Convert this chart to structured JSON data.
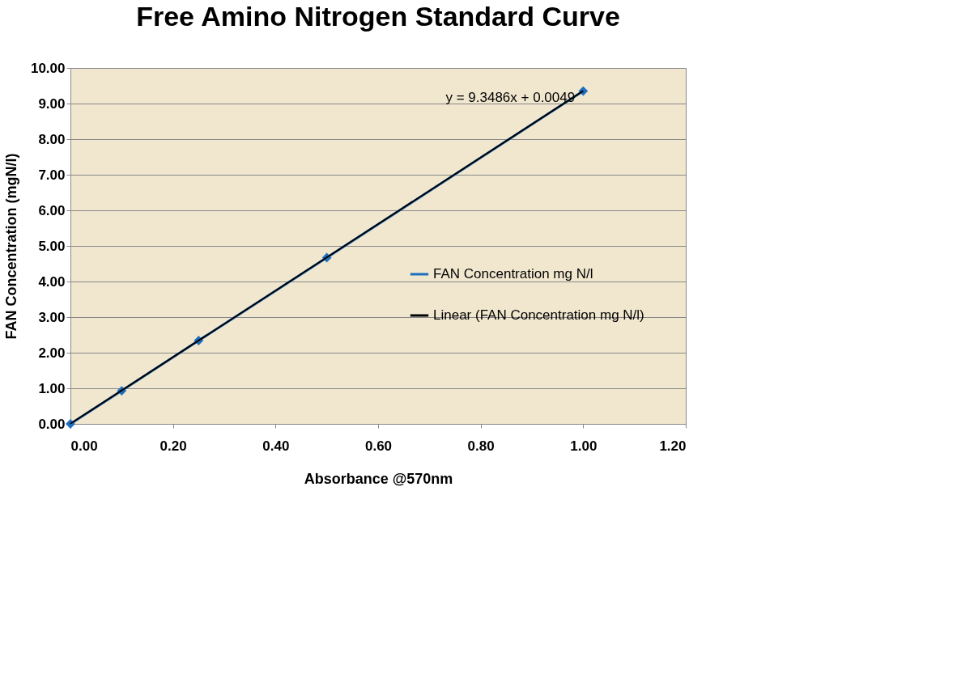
{
  "chart_data": {
    "type": "line",
    "title": "Free Amino Nitrogen Standard Curve",
    "xlabel": "Absorbance @570nm",
    "ylabel": "FAN Concentration (mgN/l)",
    "x": [
      0.0,
      0.1,
      0.25,
      0.5,
      1.0
    ],
    "series": [
      {
        "name": "FAN Concentration mg N/l",
        "color": "#1f6fbf",
        "values": [
          0.0,
          0.93,
          2.34,
          4.67,
          9.35
        ],
        "marker": "diamond"
      },
      {
        "name": "Linear (FAN Concentration mg N/l)",
        "color": "#000000",
        "type": "line",
        "x": [
          0.0,
          1.0
        ],
        "values": [
          0.0049,
          9.3535
        ],
        "marker": "none"
      }
    ],
    "annotations": [
      "y = 9.3486x + 0.0049"
    ],
    "xlim": [
      0.0,
      1.2
    ],
    "xticks": [
      {
        "value": 0,
        "label": "0.00"
      },
      {
        "value": 0.2,
        "label": "0.20"
      },
      {
        "value": 0.4,
        "label": "0.40"
      },
      {
        "value": 0.6,
        "label": "0.60"
      },
      {
        "value": 0.8,
        "label": "0.80"
      },
      {
        "value": 1.0,
        "label": "1.00"
      },
      {
        "value": 1.2,
        "label": "1.20"
      }
    ],
    "ylim": [
      0,
      10
    ],
    "yticks": [
      {
        "value": 0,
        "label": "0.00"
      },
      {
        "value": 1,
        "label": "1.00"
      },
      {
        "value": 2,
        "label": "2.00"
      },
      {
        "value": 3,
        "label": "3.00"
      },
      {
        "value": 4,
        "label": "4.00"
      },
      {
        "value": 5,
        "label": "5.00"
      },
      {
        "value": 6,
        "label": "6.00"
      },
      {
        "value": 7,
        "label": "7.00"
      },
      {
        "value": 8,
        "label": "8.00"
      },
      {
        "value": 9,
        "label": "9.00"
      },
      {
        "value": 10,
        "label": "10.00"
      }
    ],
    "grid": "y",
    "legend": "right"
  }
}
